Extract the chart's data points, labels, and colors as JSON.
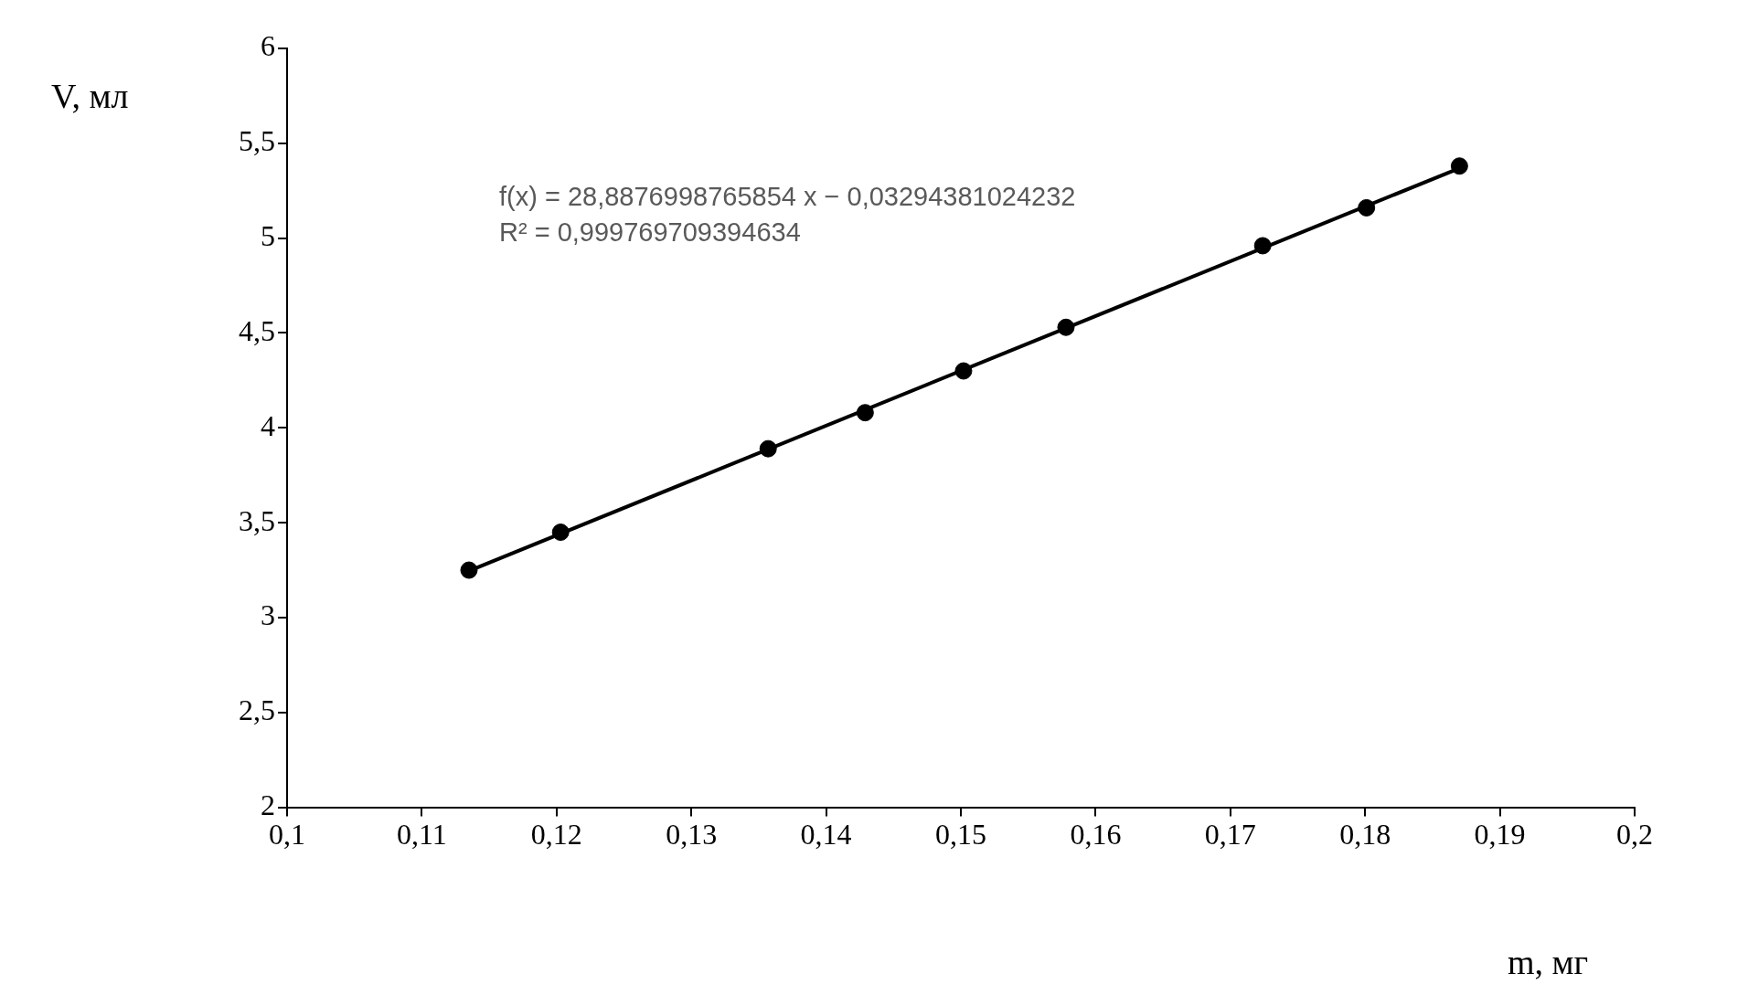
{
  "chart_data": {
    "type": "scatter",
    "xlabel": "m, мг",
    "ylabel": "V, мл",
    "xlim": [
      0.1,
      0.2
    ],
    "ylim": [
      2,
      6
    ],
    "xticks": [
      {
        "value": 0.1,
        "label": "0,1"
      },
      {
        "value": 0.11,
        "label": "0,11"
      },
      {
        "value": 0.12,
        "label": "0,12"
      },
      {
        "value": 0.13,
        "label": "0,13"
      },
      {
        "value": 0.14,
        "label": "0,14"
      },
      {
        "value": 0.15,
        "label": "0,15"
      },
      {
        "value": 0.16,
        "label": "0,16"
      },
      {
        "value": 0.17,
        "label": "0,17"
      },
      {
        "value": 0.18,
        "label": "0,18"
      },
      {
        "value": 0.19,
        "label": "0,19"
      },
      {
        "value": 0.2,
        "label": "0,2"
      }
    ],
    "yticks": [
      2,
      {
        "value": 2.5,
        "label": "2,5"
      },
      3,
      {
        "value": 3.5,
        "label": "3,5"
      },
      4,
      {
        "value": 4.5,
        "label": "4,5"
      },
      5,
      {
        "value": 5.5,
        "label": "5,5"
      },
      6
    ],
    "grid": false,
    "legend": false,
    "series": [
      {
        "type": "line",
        "marker": "none",
        "color": "#000000",
        "x": [
          0.1135,
          0.187
        ],
        "values": [
          3.246,
          5.369
        ]
      },
      {
        "marker": "circle",
        "color": "#000000",
        "x": [
          0.1135,
          0.1203,
          0.1357,
          0.1429,
          0.1502,
          0.1578,
          0.1724,
          0.1801,
          0.187
        ],
        "values": [
          3.25,
          3.45,
          3.89,
          4.08,
          4.3,
          4.53,
          4.96,
          5.16,
          5.38
        ]
      }
    ],
    "annotations": [
      "f(x) = 28,8876998765854 x − 0,03294381024232",
      "R² = 0,999769709394634"
    ]
  }
}
